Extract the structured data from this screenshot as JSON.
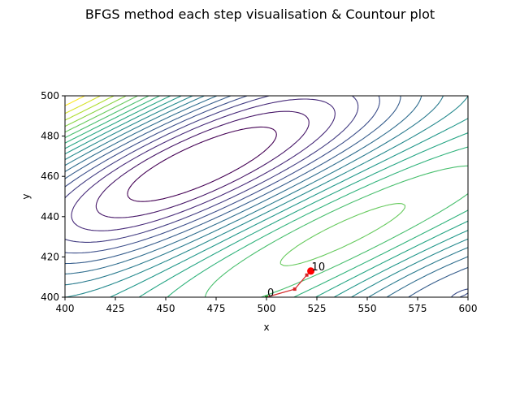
{
  "chart_data": {
    "type": "contour",
    "title": "BFGS method each step visualisation & Countour plot",
    "xlabel": "x",
    "ylabel": "y",
    "xlim": [
      400,
      600
    ],
    "ylim": [
      400,
      500
    ],
    "x_ticks": [
      400,
      425,
      450,
      475,
      500,
      525,
      550,
      575,
      600
    ],
    "y_ticks": [
      400,
      420,
      440,
      460,
      480,
      500
    ],
    "grid": false,
    "legend": "none",
    "colormap": "viridis",
    "colors": {
      "path_line": "#d62728",
      "start_marker": "#2ca02c",
      "step_marker": "#d62728",
      "final_marker": "#ff0000"
    },
    "path": {
      "x": [
        500,
        514,
        520,
        522
      ],
      "y": [
        400,
        404,
        411,
        413
      ]
    },
    "annotations": [
      {
        "text": "0",
        "x": 500,
        "y": 400
      },
      {
        "text": "10",
        "x": 522,
        "y": 413
      }
    ]
  }
}
